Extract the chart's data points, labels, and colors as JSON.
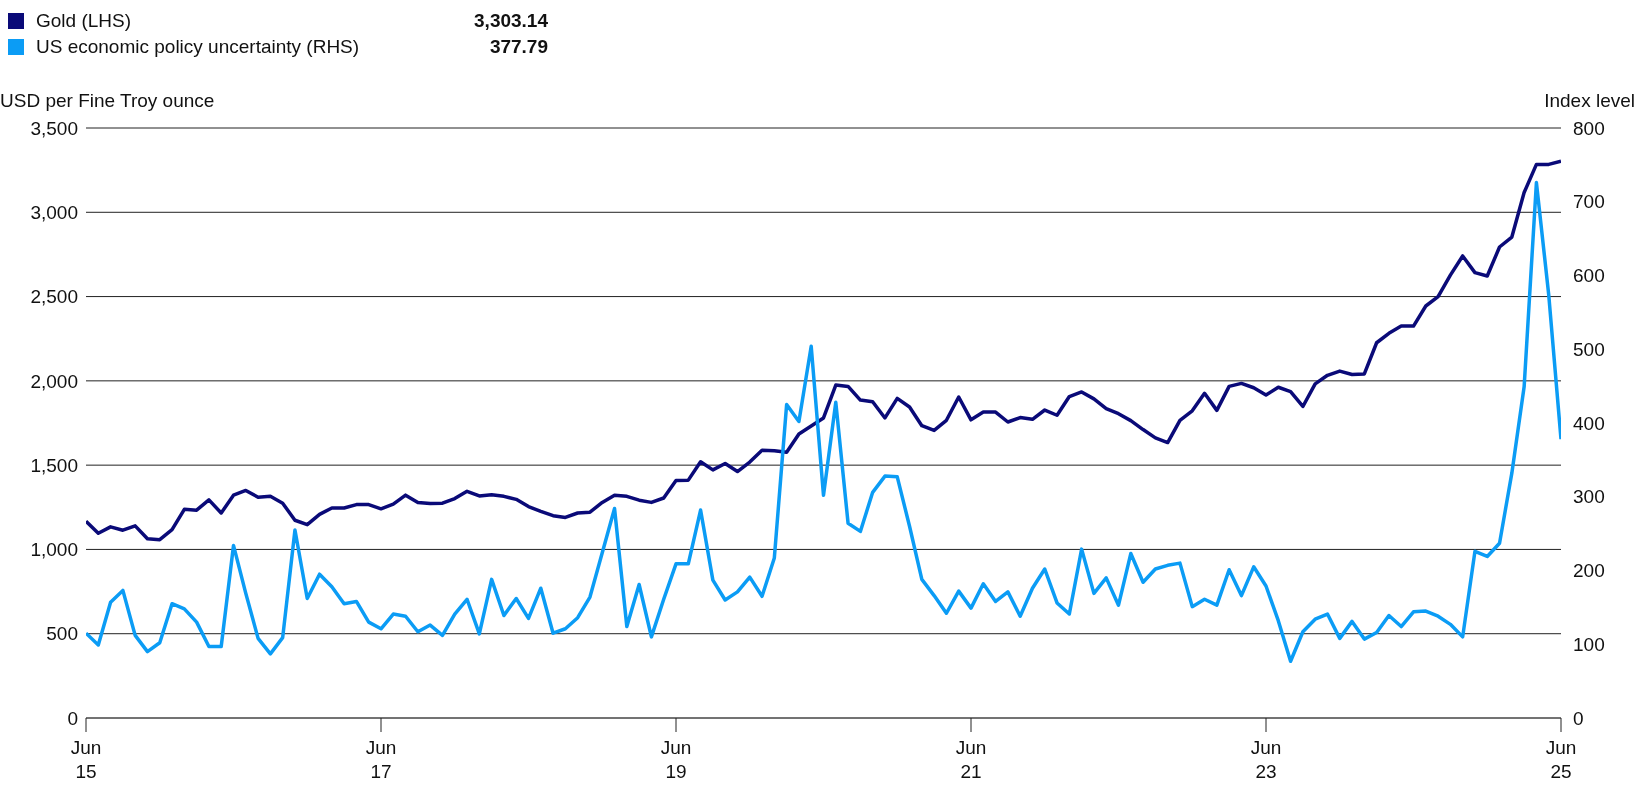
{
  "chart_data": {
    "type": "line",
    "ylabel": "USD per Fine Troy ounce",
    "y2label": "Index level",
    "x": [
      "2015-06",
      "2015-07",
      "2015-08",
      "2015-09",
      "2015-10",
      "2015-11",
      "2015-12",
      "2016-01",
      "2016-02",
      "2016-03",
      "2016-04",
      "2016-05",
      "2016-06",
      "2016-07",
      "2016-08",
      "2016-09",
      "2016-10",
      "2016-11",
      "2016-12",
      "2017-01",
      "2017-02",
      "2017-03",
      "2017-04",
      "2017-05",
      "2017-06",
      "2017-07",
      "2017-08",
      "2017-09",
      "2017-10",
      "2017-11",
      "2017-12",
      "2018-01",
      "2018-02",
      "2018-03",
      "2018-04",
      "2018-05",
      "2018-06",
      "2018-07",
      "2018-08",
      "2018-09",
      "2018-10",
      "2018-11",
      "2018-12",
      "2019-01",
      "2019-02",
      "2019-03",
      "2019-04",
      "2019-05",
      "2019-06",
      "2019-07",
      "2019-08",
      "2019-09",
      "2019-10",
      "2019-11",
      "2019-12",
      "2020-01",
      "2020-02",
      "2020-03",
      "2020-04",
      "2020-05",
      "2020-06",
      "2020-07",
      "2020-08",
      "2020-09",
      "2020-10",
      "2020-11",
      "2020-12",
      "2021-01",
      "2021-02",
      "2021-03",
      "2021-04",
      "2021-05",
      "2021-06",
      "2021-07",
      "2021-08",
      "2021-09",
      "2021-10",
      "2021-11",
      "2021-12",
      "2022-01",
      "2022-02",
      "2022-03",
      "2022-04",
      "2022-05",
      "2022-06",
      "2022-07",
      "2022-08",
      "2022-09",
      "2022-10",
      "2022-11",
      "2022-12",
      "2023-01",
      "2023-02",
      "2023-03",
      "2023-04",
      "2023-05",
      "2023-06",
      "2023-07",
      "2023-08",
      "2023-09",
      "2023-10",
      "2023-11",
      "2023-12",
      "2024-01",
      "2024-02",
      "2024-03",
      "2024-04",
      "2024-05",
      "2024-06",
      "2024-07",
      "2024-08",
      "2024-09",
      "2024-10",
      "2024-11",
      "2024-12",
      "2025-01",
      "2025-02",
      "2025-03",
      "2025-04",
      "2025-05",
      "2025-06"
    ],
    "series": [
      {
        "name": "Gold (LHS)",
        "color": "#0a0a78",
        "values": [
          1167,
          1096,
          1134,
          1114,
          1140,
          1063,
          1058,
          1117,
          1238,
          1233,
          1294,
          1216,
          1322,
          1350,
          1310,
          1315,
          1274,
          1173,
          1147,
          1208,
          1246,
          1246,
          1266,
          1266,
          1241,
          1269,
          1322,
          1279,
          1272,
          1274,
          1302,
          1345,
          1317,
          1325,
          1315,
          1297,
          1254,
          1226,
          1200,
          1190,
          1216,
          1221,
          1279,
          1322,
          1315,
          1292,
          1279,
          1305,
          1409,
          1411,
          1520,
          1472,
          1510,
          1462,
          1518,
          1589,
          1586,
          1576,
          1685,
          1732,
          1780,
          1975,
          1967,
          1886,
          1876,
          1780,
          1896,
          1845,
          1734,
          1706,
          1766,
          1904,
          1769,
          1815,
          1815,
          1756,
          1782,
          1772,
          1827,
          1796,
          1907,
          1934,
          1893,
          1835,
          1805,
          1764,
          1711,
          1662,
          1634,
          1766,
          1822,
          1926,
          1825,
          1967,
          1985,
          1959,
          1916,
          1962,
          1936,
          1848,
          1982,
          2033,
          2058,
          2038,
          2041,
          2226,
          2282,
          2325,
          2325,
          2444,
          2500,
          2627,
          2741,
          2642,
          2622,
          2794,
          2853,
          3117,
          3284,
          3284,
          3303
        ]
      },
      {
        "name": "US economic policy uncertainty (RHS)",
        "color": "#0b9cf5",
        "axis": "y2",
        "values": [
          115,
          99,
          157,
          173,
          112,
          90,
          102,
          155,
          148,
          130,
          97,
          97,
          234,
          169,
          108,
          87,
          109,
          255,
          162,
          195,
          178,
          155,
          158,
          130,
          121,
          141,
          138,
          117,
          126,
          112,
          141,
          161,
          114,
          188,
          139,
          162,
          135,
          176,
          115,
          121,
          136,
          164,
          224,
          284,
          124,
          181,
          110,
          161,
          209,
          209,
          282,
          187,
          160,
          171,
          191,
          165,
          217,
          425,
          402,
          504,
          302,
          428,
          264,
          253,
          306,
          328,
          327,
          260,
          188,
          166,
          142,
          172,
          149,
          182,
          158,
          171,
          138,
          176,
          202,
          156,
          141,
          229,
          169,
          190,
          153,
          223,
          184,
          202,
          207,
          210,
          151,
          161,
          153,
          201,
          166,
          205,
          179,
          132,
          77,
          117,
          134,
          141,
          108,
          131,
          107,
          116,
          139,
          124,
          144,
          145,
          138,
          127,
          110,
          226,
          219,
          237,
          332,
          449,
          726,
          574,
          378
        ]
      }
    ],
    "annotations": [
      "3,303.14",
      "377.79"
    ],
    "xlim": [
      "2015-06",
      "2025-06"
    ],
    "xticks": [
      {
        "value": "2015-06",
        "label": "Jun\n15"
      },
      {
        "value": "2017-06",
        "label": "Jun\n17"
      },
      {
        "value": "2019-06",
        "label": "Jun\n19"
      },
      {
        "value": "2021-06",
        "label": "Jun\n21"
      },
      {
        "value": "2023-06",
        "label": "Jun\n23"
      },
      {
        "value": "2025-06",
        "label": "Jun\n25"
      }
    ],
    "ylim": [
      0,
      3500
    ],
    "yticks": [
      0,
      500,
      {
        "value": 1000,
        "label": "1,000"
      },
      {
        "value": 1500,
        "label": "1,500"
      },
      {
        "value": 2000,
        "label": "2,000"
      },
      {
        "value": 2500,
        "label": "2,500"
      },
      {
        "value": 3000,
        "label": "3,000"
      },
      {
        "value": 3500,
        "label": "3,500"
      }
    ],
    "y2lim": [
      0,
      800
    ],
    "y2ticks": [
      0,
      100,
      200,
      300,
      400,
      500,
      600,
      700,
      800
    ],
    "grid": "y",
    "legend": "top left",
    "marker": "none",
    "line_style": "solid"
  }
}
